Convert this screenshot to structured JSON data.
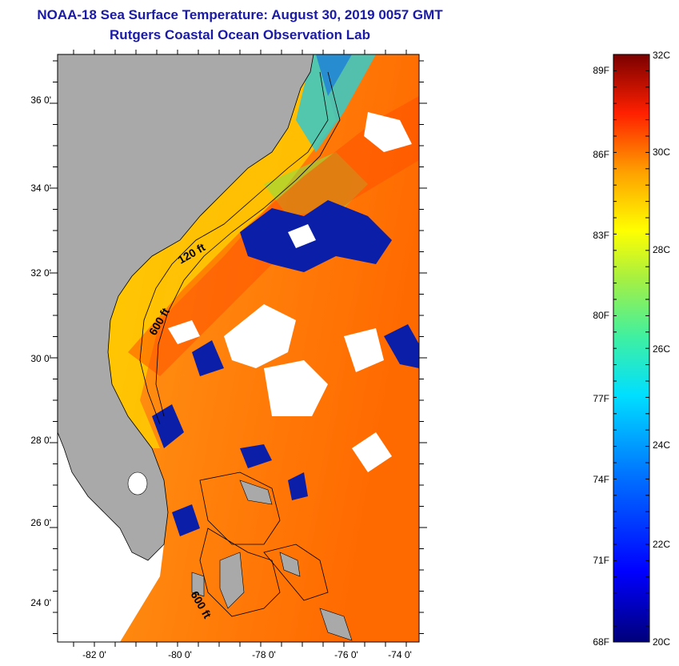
{
  "header": {
    "title": "NOAA-18 Sea Surface Temperature:  August 30, 2019 0057 GMT",
    "subtitle": "Rutgers Coastal Ocean Observation Lab"
  },
  "map": {
    "lat_labels": [
      "36 0'",
      "34 0'",
      "32 0'",
      "30 0'",
      "28 0'",
      "26 0'",
      "24 0'"
    ],
    "lon_labels": [
      "-82 0'",
      "-80 0'",
      "-78 0'",
      "-76 0'",
      "-74 0'"
    ],
    "contour_labels": [
      "120 ft",
      "600 ft",
      "600 ft"
    ]
  },
  "colorbar": {
    "fahrenheit_labels": [
      "89F",
      "86F",
      "83F",
      "80F",
      "77F",
      "74F",
      "71F",
      "68F"
    ],
    "celsius_labels": [
      "32C",
      "30C",
      "28C",
      "26C",
      "24C",
      "22C",
      "20C"
    ]
  },
  "colors": {
    "land": "#a9a9a9",
    "title": "#1a1aa6",
    "cloud": "#ffffff"
  }
}
